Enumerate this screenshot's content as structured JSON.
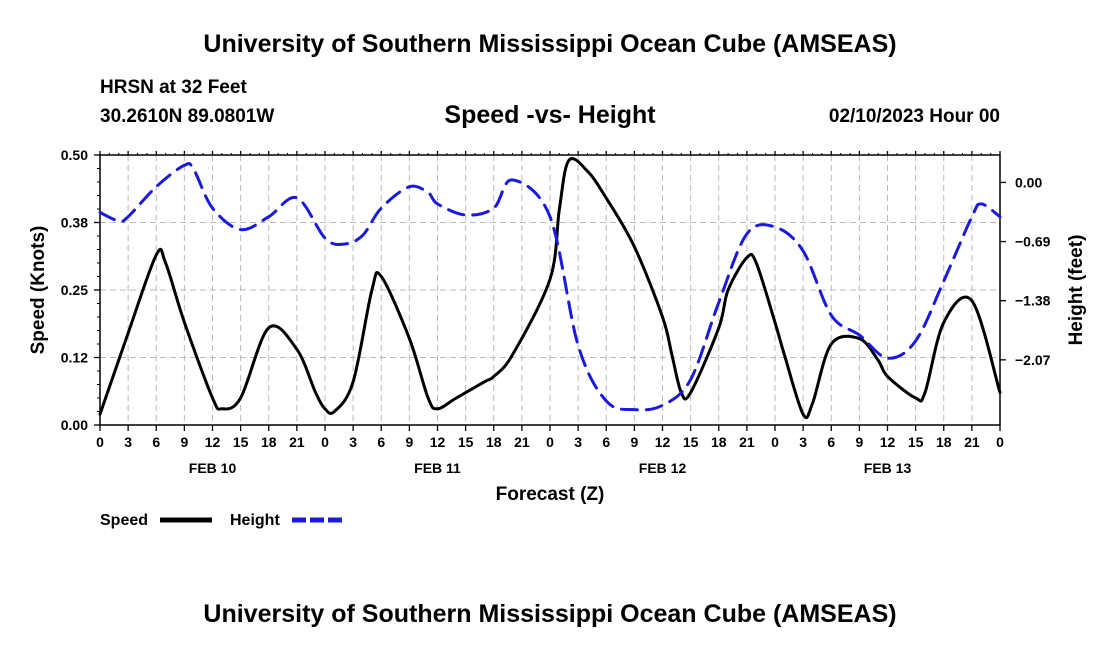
{
  "header": {
    "title": "University of Southern Mississippi Ocean Cube (AMSEAS)",
    "station": "HRSN at 32 Feet",
    "coordinates": "30.2610N  89.0801W",
    "subtitle": "Speed -vs- Height",
    "datetime": "02/10/2023 Hour 00"
  },
  "footer": {
    "title": "University of Southern Mississippi Ocean Cube (AMSEAS)"
  },
  "chart_data": {
    "type": "line",
    "title": "Speed -vs- Height",
    "xlabel": "Forecast (Z)",
    "ylabel": "Speed (Knots)",
    "y2label": "Height (feet)",
    "xlim": [
      0,
      96
    ],
    "ylim": [
      0,
      0.5
    ],
    "y2lim": [
      -2.83,
      0.32
    ],
    "x_tick_labels": [
      "0",
      "3",
      "6",
      "9",
      "12",
      "15",
      "18",
      "21",
      "0",
      "3",
      "6",
      "9",
      "12",
      "15",
      "18",
      "21",
      "0",
      "3",
      "6",
      "9",
      "12",
      "15",
      "18",
      "21",
      "0",
      "3",
      "6",
      "9",
      "12",
      "15",
      "18",
      "21",
      "0"
    ],
    "day_labels": [
      {
        "label": "FEB 10",
        "x": 12
      },
      {
        "label": "FEB 11",
        "x": 36
      },
      {
        "label": "FEB 12",
        "x": 60
      },
      {
        "label": "FEB 13",
        "x": 84
      }
    ],
    "y_ticks": [
      {
        "value": 0.0,
        "label": "0.00"
      },
      {
        "value": 0.125,
        "label": "0.12"
      },
      {
        "value": 0.25,
        "label": "0.25"
      },
      {
        "value": 0.375,
        "label": "0.38"
      },
      {
        "value": 0.5,
        "label": "0.50"
      }
    ],
    "y2_ticks": [
      {
        "value": 0.0,
        "label": "0.00"
      },
      {
        "value": -0.69,
        "label": "−0.69"
      },
      {
        "value": -1.38,
        "label": "−1.38"
      },
      {
        "value": -2.07,
        "label": "−2.07"
      }
    ],
    "grid": true,
    "legend": "bottom-left",
    "series": [
      {
        "name": "Speed",
        "axis": "left",
        "color": "#000000",
        "dash": "solid",
        "x": [
          0,
          3,
          6,
          7,
          9,
          12,
          13,
          15,
          18,
          21,
          23,
          24,
          25,
          27,
          29,
          30,
          33,
          35,
          36,
          38,
          41,
          42,
          44,
          48,
          49,
          50,
          52,
          54,
          57,
          60,
          61,
          62,
          63,
          66,
          67,
          69,
          70,
          72,
          73,
          75,
          76,
          78,
          81,
          83,
          84,
          87,
          88,
          90,
          93,
          96
        ],
        "y": [
          0.02,
          0.17,
          0.315,
          0.3,
          0.19,
          0.05,
          0.03,
          0.05,
          0.18,
          0.14,
          0.06,
          0.03,
          0.025,
          0.08,
          0.25,
          0.275,
          0.16,
          0.05,
          0.03,
          0.05,
          0.08,
          0.09,
          0.13,
          0.27,
          0.4,
          0.49,
          0.47,
          0.42,
          0.33,
          0.2,
          0.13,
          0.06,
          0.06,
          0.18,
          0.25,
          0.31,
          0.3,
          0.19,
          0.13,
          0.02,
          0.04,
          0.15,
          0.16,
          0.12,
          0.09,
          0.05,
          0.06,
          0.19,
          0.23,
          0.06
        ]
      },
      {
        "name": "Height",
        "axis": "right",
        "color": "#1a1adc",
        "dash": "dashed",
        "x": [
          0,
          2,
          3,
          6,
          9,
          10,
          12,
          15,
          18,
          21,
          24,
          26,
          28,
          30,
          33,
          35,
          36,
          39,
          42,
          44,
          48,
          51,
          54,
          57,
          60,
          63,
          66,
          69,
          72,
          75,
          78,
          81,
          84,
          87,
          90,
          93,
          94,
          96
        ],
        "y": [
          -0.35,
          -0.45,
          -0.4,
          -0.05,
          0.2,
          0.15,
          -0.3,
          -0.55,
          -0.4,
          -0.18,
          -0.65,
          -0.72,
          -0.62,
          -0.3,
          -0.05,
          -0.12,
          -0.25,
          -0.38,
          -0.3,
          0.03,
          -0.4,
          -1.9,
          -2.55,
          -2.65,
          -2.6,
          -2.3,
          -1.4,
          -0.6,
          -0.52,
          -0.8,
          -1.55,
          -1.78,
          -2.05,
          -1.85,
          -1.15,
          -0.4,
          -0.25,
          -0.4
        ]
      }
    ]
  }
}
